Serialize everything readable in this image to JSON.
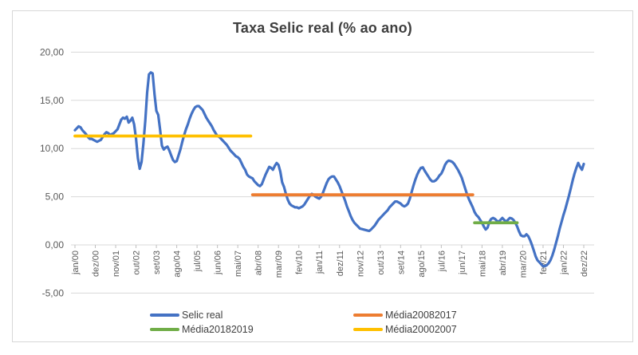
{
  "chart_data": {
    "type": "line",
    "title": "Taxa Selic real (% ao ano)",
    "grid": true,
    "y_axis": {
      "tick_labels": [
        "20,00",
        "15,00",
        "10,00",
        "5,00",
        "0,00",
        "-5,00"
      ],
      "tick_values": [
        20,
        15,
        10,
        5,
        0,
        -5
      ],
      "min": -5,
      "max": 20
    },
    "x_axis": {
      "unit": "month",
      "start": "jan/00",
      "end": "dez/22",
      "tick_every_months": 11,
      "tick_labels": [
        "jan/00",
        "dez/00",
        "nov/01",
        "out/02",
        "set/03",
        "ago/04",
        "jul/05",
        "jun/06",
        "mai/07",
        "abr/08",
        "mar/09",
        "fev/10",
        "jan/11",
        "dez/11",
        "nov/12",
        "out/13",
        "set/14",
        "ago/15",
        "jul/16",
        "jun/17",
        "mai/18",
        "abr/19",
        "mar/20",
        "fev/21",
        "jan/22",
        "dez/22"
      ]
    },
    "series": [
      {
        "name": "Selic real",
        "kind": "monthly-line",
        "color": "#4472C4",
        "start_month_index": 0,
        "values": [
          11.9,
          12.1,
          12.3,
          12.2,
          11.9,
          11.7,
          11.5,
          11.2,
          11.0,
          11.0,
          10.9,
          10.8,
          10.7,
          10.8,
          10.9,
          11.2,
          11.5,
          11.7,
          11.6,
          11.4,
          11.5,
          11.6,
          11.8,
          12.0,
          12.5,
          13.0,
          13.2,
          13.1,
          13.3,
          12.7,
          12.9,
          13.2,
          12.5,
          11.0,
          9.0,
          7.9,
          8.6,
          10.5,
          12.9,
          15.8,
          17.7,
          17.9,
          17.8,
          15.6,
          13.9,
          13.5,
          12.0,
          10.3,
          9.9,
          10.1,
          10.2,
          9.8,
          9.3,
          8.8,
          8.6,
          8.7,
          9.3,
          9.9,
          10.7,
          11.4,
          12.0,
          12.5,
          13.1,
          13.6,
          14.0,
          14.3,
          14.4,
          14.4,
          14.2,
          14.0,
          13.6,
          13.2,
          12.9,
          12.6,
          12.3,
          11.9,
          11.6,
          11.3,
          11.2,
          11.0,
          10.8,
          10.6,
          10.4,
          10.1,
          9.8,
          9.6,
          9.4,
          9.2,
          9.1,
          8.9,
          8.5,
          8.1,
          7.8,
          7.3,
          7.1,
          7.0,
          6.9,
          6.6,
          6.4,
          6.2,
          6.1,
          6.3,
          6.8,
          7.3,
          7.7,
          8.1,
          8.0,
          7.8,
          8.2,
          8.5,
          8.3,
          7.6,
          6.5,
          6.0,
          5.3,
          4.7,
          4.3,
          4.1,
          4.0,
          3.9,
          3.9,
          3.8,
          3.9,
          4.0,
          4.2,
          4.5,
          4.8,
          5.1,
          5.3,
          5.2,
          5.0,
          4.9,
          4.8,
          5.0,
          5.4,
          5.9,
          6.4,
          6.8,
          7.0,
          7.1,
          7.1,
          6.8,
          6.5,
          6.1,
          5.6,
          5.1,
          4.6,
          4.0,
          3.5,
          3.0,
          2.6,
          2.3,
          2.1,
          1.9,
          1.7,
          1.65,
          1.6,
          1.55,
          1.5,
          1.45,
          1.6,
          1.8,
          2.0,
          2.3,
          2.6,
          2.8,
          3.0,
          3.2,
          3.4,
          3.6,
          3.9,
          4.1,
          4.3,
          4.5,
          4.5,
          4.4,
          4.3,
          4.1,
          4.0,
          4.1,
          4.3,
          4.8,
          5.5,
          6.2,
          6.8,
          7.3,
          7.7,
          8.0,
          8.05,
          7.7,
          7.4,
          7.1,
          6.8,
          6.6,
          6.6,
          6.7,
          6.9,
          7.2,
          7.4,
          7.8,
          8.3,
          8.6,
          8.75,
          8.7,
          8.6,
          8.4,
          8.1,
          7.8,
          7.4,
          7.0,
          6.4,
          5.8,
          5.2,
          4.7,
          4.3,
          3.9,
          3.4,
          3.1,
          2.9,
          2.6,
          2.3,
          1.9,
          1.6,
          1.8,
          2.4,
          2.7,
          2.8,
          2.7,
          2.5,
          2.4,
          2.6,
          2.8,
          2.6,
          2.4,
          2.6,
          2.8,
          2.75,
          2.6,
          2.3,
          1.9,
          1.4,
          1.0,
          0.9,
          0.9,
          1.1,
          0.9,
          0.5,
          0.0,
          -0.6,
          -1.2,
          -1.6,
          -1.8,
          -2.0,
          -2.2,
          -2.2,
          -2.1,
          -1.9,
          -1.6,
          -1.1,
          -0.5,
          0.2,
          0.9,
          1.7,
          2.4,
          3.1,
          3.7,
          4.4,
          5.1,
          5.9,
          6.7,
          7.4,
          8.0,
          8.5,
          8.1,
          7.8,
          8.4
        ]
      },
      {
        "name": "Média20082017",
        "kind": "flat-line",
        "color": "#ED7D31",
        "value": 5.2,
        "start_month_index": 96,
        "end_month_index": 215,
        "period": "jan/08-dez/17"
      },
      {
        "name": "Média20182019",
        "kind": "flat-line",
        "color": "#70AD47",
        "value": 2.3,
        "start_month_index": 216,
        "end_month_index": 239,
        "period": "jan/18-dez/19"
      },
      {
        "name": "Média20002007",
        "kind": "flat-line",
        "color": "#FFC000",
        "value": 11.3,
        "start_month_index": 0,
        "end_month_index": 95,
        "period": "jan/00-dez/07"
      }
    ],
    "legend": {
      "position": "bottom",
      "rows": [
        [
          "Selic real",
          "Média20082017"
        ],
        [
          "Média20182019",
          "Média20002007"
        ]
      ]
    },
    "style": {
      "gridline_color": "#d9d9d9",
      "tick_color": "#bfbfbf",
      "axis_label_color": "#595959",
      "title_color": "#3f3f3f",
      "background": "#ffffff"
    }
  }
}
